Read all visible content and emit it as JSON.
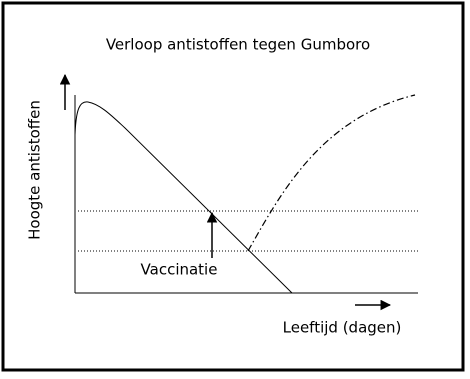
{
  "title": "Verloop antistoffen tegen Gumboro",
  "y_axis_label": "Hoogte antistoffen",
  "x_axis_label": "Leeftijd (dagen)",
  "annotation": "Vaccinatie"
}
